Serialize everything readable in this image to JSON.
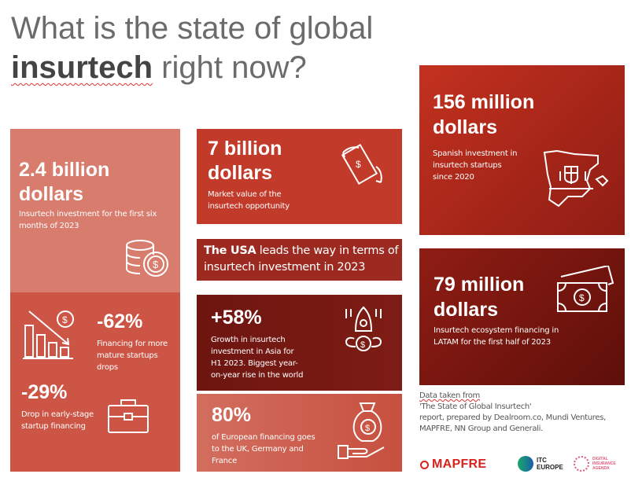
{
  "header": {
    "title_line1": "What is the state of global",
    "title_bold": "insurtech",
    "title_rest": " right now?"
  },
  "cards": {
    "investment": {
      "value": "2.4 billion",
      "unit": "dollars",
      "desc": "Insurtech investment for the first six months of 2023",
      "icon": "coins-dollar-icon"
    },
    "mature": {
      "value": "-62%",
      "desc": "Financing for more mature startups drops",
      "icon": "declining-chart-dollar-icon"
    },
    "early": {
      "value": "-29%",
      "desc": "Drop in early-stage startup financing",
      "icon": "briefcase-icon"
    },
    "market": {
      "value": "7 billion",
      "unit": "dollars",
      "desc": "Market value of the insurtech opportunity",
      "icon": "flying-money-icon"
    },
    "usa": {
      "bold": "The USA",
      "rest": " leads the way in terms of insurtech investment in 2023"
    },
    "asia": {
      "value": "+58%",
      "desc": "Growth in insurtech investment in Asia for H1 2023. Biggest year-on-year rise in the world",
      "icon": "rocket-money-icon"
    },
    "europe": {
      "value": "80%",
      "desc": "of European financing goes to the UK, Germany and France",
      "icon": "money-bag-hand-icon"
    },
    "spain": {
      "value": "156 million",
      "unit": "dollars",
      "desc": "Spanish investment in insurtech startups since 2020",
      "icon": "spain-map-icon"
    },
    "latam": {
      "value": "79 million",
      "unit": "dollars",
      "desc": "Insurtech ecosystem financing in LATAM for the first half of 2023",
      "icon": "banknotes-icon"
    }
  },
  "source": {
    "line1": "Data taken from",
    "line2": "'The State of Global Insurtech'",
    "line3": "report, prepared by Dealroom.co, Mundi Ventures, MAPFRE, NN Group and Generali."
  },
  "logos": {
    "mapfre": "MAPFRE",
    "itc_1": "ITC",
    "itc_2": "EUROPE",
    "dia_1": "DIGITAL",
    "dia_2": "INSURANCE",
    "dia_3": "AGENDA"
  },
  "colors": {
    "light_coral": "#d87c6e",
    "coral": "#cd5545",
    "red": "#c23b2a",
    "dark_red": "#9c2a20",
    "maroon": "#6e1510",
    "mapfre_red": "#d8231d"
  }
}
